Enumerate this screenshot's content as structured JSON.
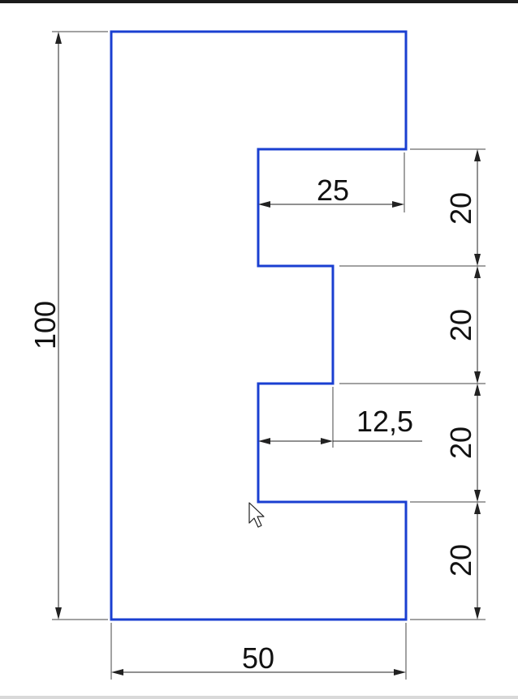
{
  "drawing": {
    "outline_color": "#1a3fd1",
    "dimensions": {
      "overall_height": "100",
      "overall_width": "50",
      "top_slot_depth": "25",
      "middle_slot_depth": "12,5",
      "segment_1": "20",
      "segment_2": "20",
      "segment_3": "20",
      "segment_4": "20"
    }
  },
  "cursor": {
    "icon": "mouse-pointer-icon"
  }
}
